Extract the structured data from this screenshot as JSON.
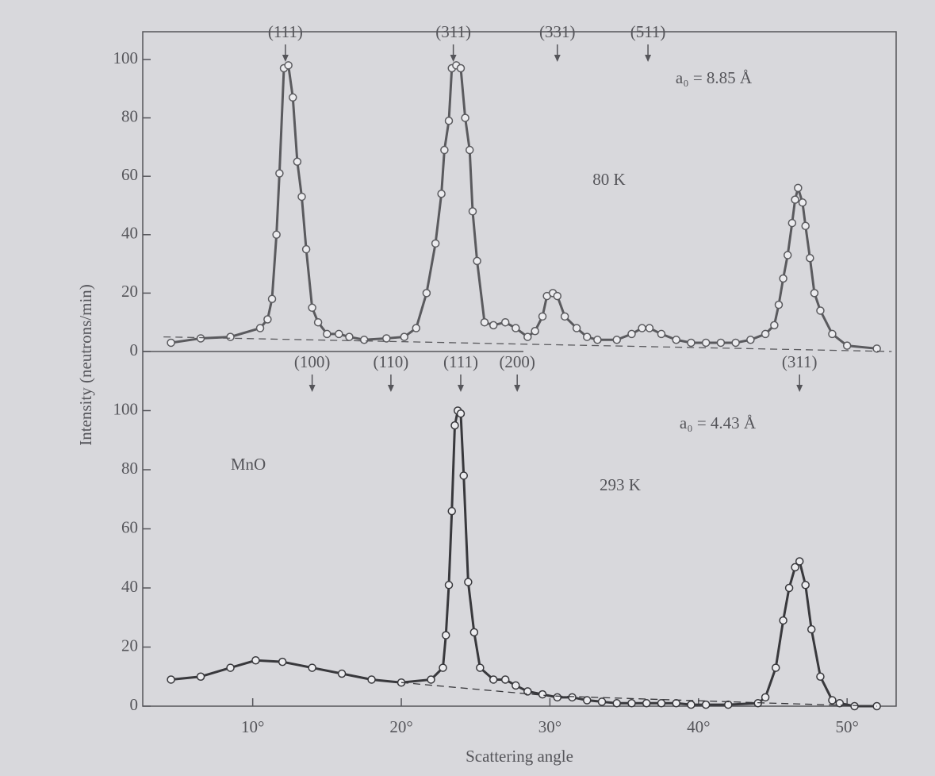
{
  "x_label": "Scattering angle",
  "y_label": "Intensity (neutrons/min)",
  "chart_data": [
    {
      "type": "line",
      "color": "#5a5a5e",
      "xlim": [
        2.6,
        53.3
      ],
      "ylim": [
        0,
        109.5
      ],
      "yticks": [
        0,
        20,
        40,
        60,
        80,
        100
      ],
      "annotations": [
        "a₀ = 8.85 Å",
        "80 K"
      ],
      "peaks": [
        {
          "label": "(111)",
          "x": 12.2
        },
        {
          "label": "(311)",
          "x": 23.5
        },
        {
          "label": "(331)",
          "x": 30.5
        },
        {
          "label": "(511)",
          "x": 36.6
        }
      ],
      "series": [
        {
          "markers": true,
          "x": [
            4.5,
            6.5,
            8.5,
            10.5,
            11,
            11.3,
            11.6,
            11.8,
            12.1,
            12.4,
            12.7,
            13,
            13.3,
            13.6,
            14,
            14.4,
            15,
            15.8,
            16.5,
            17.5,
            19,
            20.2,
            21,
            21.7,
            22.3,
            22.7,
            22.9,
            23.2,
            23.4,
            23.7,
            24,
            24.3,
            24.6,
            24.8,
            25.1,
            25.6,
            26.2,
            27,
            27.7,
            28.5,
            29,
            29.5,
            29.8,
            30.2,
            30.5,
            31,
            31.8,
            32.5,
            33.2,
            34.5,
            35.5,
            36.2,
            36.7,
            37.5,
            38.5,
            39.5,
            40.5,
            41.5,
            42.5,
            43.5,
            44.5,
            45.1,
            45.4,
            45.7,
            46,
            46.3,
            46.5,
            46.7,
            47,
            47.2,
            47.5,
            47.8,
            48.2,
            49,
            50,
            52
          ],
          "values": [
            3,
            4.5,
            5,
            8,
            11,
            18,
            40,
            61,
            97,
            98,
            87,
            65,
            53,
            35,
            15,
            10,
            6,
            6,
            5,
            4,
            4.5,
            5,
            8,
            20,
            37,
            54,
            69,
            79,
            97,
            98,
            97,
            80,
            69,
            48,
            31,
            10,
            9,
            10,
            8,
            5,
            7,
            12,
            19,
            20,
            19,
            12,
            8,
            5,
            4,
            4,
            6,
            8,
            8,
            6,
            4,
            3,
            3,
            3,
            3,
            4,
            6,
            9,
            16,
            25,
            33,
            44,
            52,
            56,
            51,
            43,
            32,
            20,
            14,
            6,
            2,
            1
          ]
        },
        {
          "style": "dashed",
          "x": [
            4,
            53
          ],
          "values": [
            5,
            0
          ]
        }
      ]
    },
    {
      "type": "line",
      "color": "#38383c",
      "xlim": [
        2.6,
        53.3
      ],
      "ylim": [
        0,
        120
      ],
      "yticks": [
        0,
        20,
        40,
        60,
        80,
        100
      ],
      "xticks": [
        {
          "value": 10,
          "label": "10°"
        },
        {
          "value": 20,
          "label": "20°"
        },
        {
          "value": 30,
          "label": "30°"
        },
        {
          "value": 40,
          "label": "40°"
        },
        {
          "value": 50,
          "label": "50°"
        }
      ],
      "annotations": [
        "a₀ = 4.43 Å",
        "293 K",
        "MnO"
      ],
      "peaks": [
        {
          "label": "(100)",
          "x": 14
        },
        {
          "label": "(110)",
          "x": 19.3
        },
        {
          "label": "(111)",
          "x": 24
        },
        {
          "label": "(200)",
          "x": 27.8
        },
        {
          "label": "(311)",
          "x": 46.8
        }
      ],
      "series": [
        {
          "markers": true,
          "x": [
            4.5,
            6.5,
            8.5,
            10.2,
            12,
            14,
            16,
            18,
            20,
            22,
            22.8,
            23,
            23.2,
            23.4,
            23.6,
            23.8,
            24,
            24.2,
            24.5,
            24.9,
            25.3,
            26.2,
            27,
            27.7,
            28.5,
            29.5,
            30.5,
            31.5,
            32.5,
            33.5,
            34.5,
            35.5,
            36.5,
            37.5,
            38.5,
            39.5,
            40.5,
            42,
            44,
            44.5,
            45.2,
            45.7,
            46.1,
            46.5,
            46.8,
            47.2,
            47.6,
            48.2,
            49,
            49.5,
            50.5,
            52
          ],
          "values": [
            9,
            10,
            13,
            15.5,
            15,
            13,
            11,
            9,
            8,
            9,
            13,
            24,
            41,
            66,
            95,
            100,
            99,
            78,
            42,
            25,
            13,
            9,
            9,
            7,
            5,
            4,
            3,
            3,
            2,
            1.5,
            1,
            1,
            1,
            1,
            1,
            0.5,
            0.5,
            0.5,
            1,
            3,
            13,
            29,
            40,
            47,
            49,
            41,
            26,
            10,
            2,
            1,
            0,
            0
          ]
        },
        {
          "style": "dashed",
          "x": [
            20,
            30,
            45,
            52
          ],
          "values": [
            8,
            3.5,
            1,
            0
          ]
        }
      ]
    }
  ]
}
